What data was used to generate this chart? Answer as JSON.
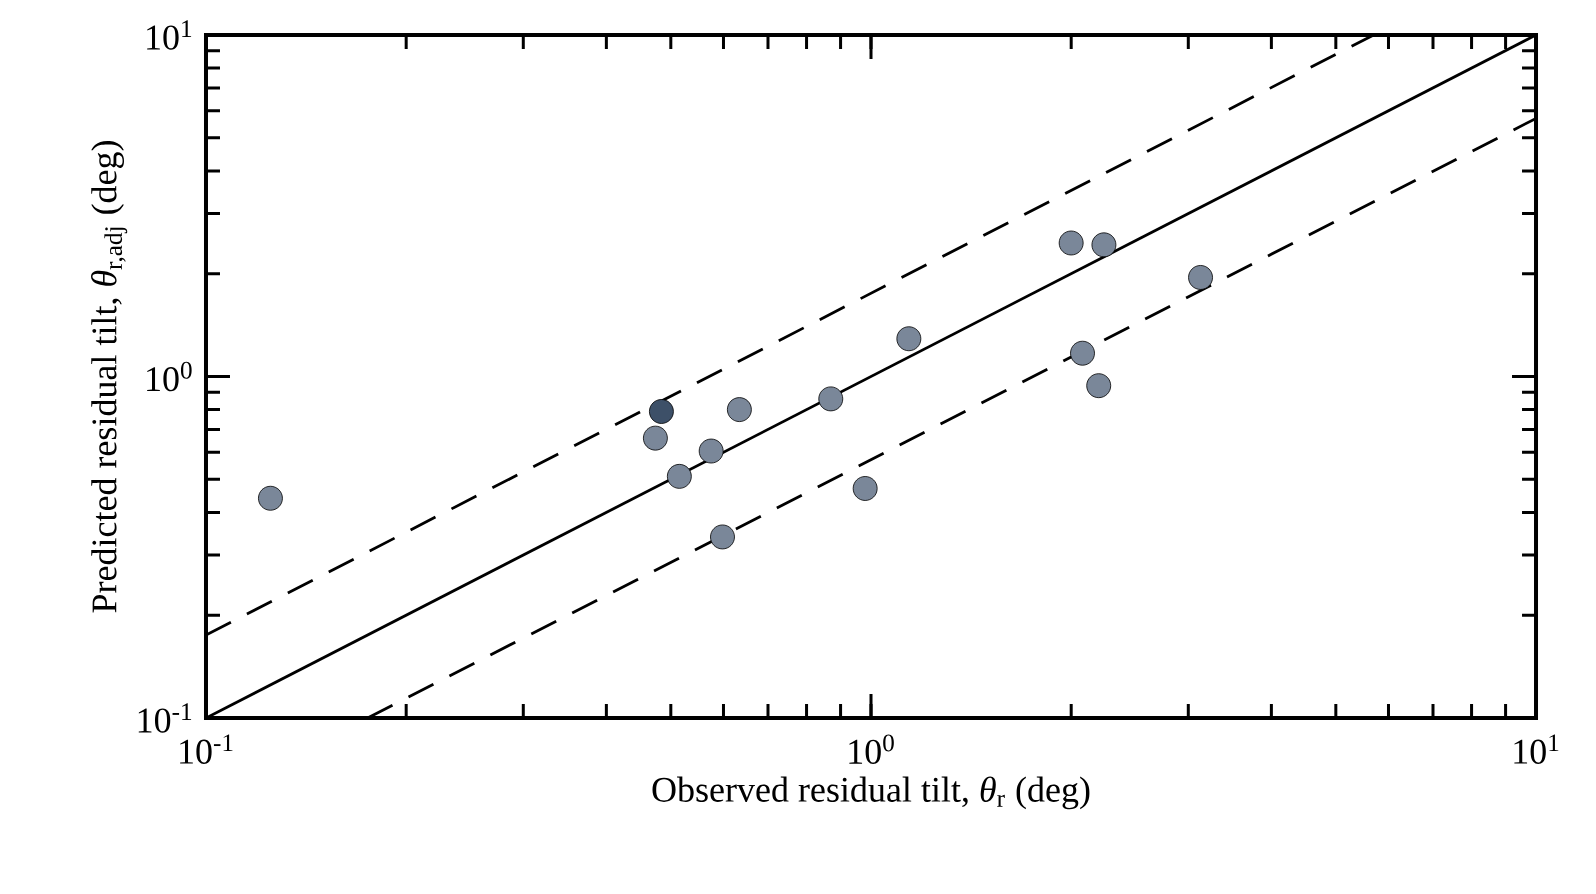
{
  "chart_data": {
    "type": "scatter",
    "xlabel": "Observed residual tilt, *θ*$_{r}$ (deg)",
    "ylabel": "Predicted residual tilt, *θ*$_{r,adj}$ (deg)",
    "log": "xy",
    "grid": false,
    "xlim": [
      0.1,
      10
    ],
    "ylim": [
      0.1,
      10
    ],
    "xticks": [
      {
        "value": 0.1,
        "label": "10$^{-1}$"
      },
      {
        "value": 1,
        "label": "10$^{0}$"
      },
      {
        "value": 10,
        "label": "10$^{1}$"
      }
    ],
    "yticks": [
      {
        "value": 0.1,
        "label": "10$^{-1}$"
      },
      {
        "value": 1,
        "label": "10$^{0}$"
      },
      {
        "value": 10,
        "label": "10$^{1}$"
      }
    ],
    "series": [
      {
        "color": "#7a8799",
        "marker": "circle",
        "x": [
          0.125,
          0.474,
          0.484,
          0.515,
          0.575,
          0.598,
          0.634,
          0.87,
          0.98,
          1.14,
          2.0,
          2.24,
          2.08,
          2.2,
          3.13
        ],
        "values": [
          0.44,
          0.66,
          0.79,
          0.51,
          0.605,
          0.339,
          0.8,
          0.86,
          0.47,
          1.29,
          2.46,
          2.43,
          1.17,
          0.94,
          1.95
        ],
        "colors": [
          null,
          null,
          "#3d5068",
          null,
          null,
          null,
          null,
          null,
          null,
          null,
          null,
          null,
          null,
          null,
          null
        ]
      },
      {
        "type": "line",
        "color": "#000000",
        "line_style": "solid",
        "marker": "none",
        "x": [
          0.1,
          10
        ],
        "values": [
          0.1,
          10
        ]
      },
      {
        "type": "line",
        "color": "#000000",
        "line_style": "dashed",
        "marker": "none",
        "x": [
          0.1,
          5.7
        ],
        "values": [
          0.175,
          10
        ]
      },
      {
        "type": "line",
        "color": "#000000",
        "line_style": "dashed",
        "marker": "none",
        "x": [
          0.175,
          10
        ],
        "values": [
          0.1,
          5.7
        ]
      }
    ]
  }
}
